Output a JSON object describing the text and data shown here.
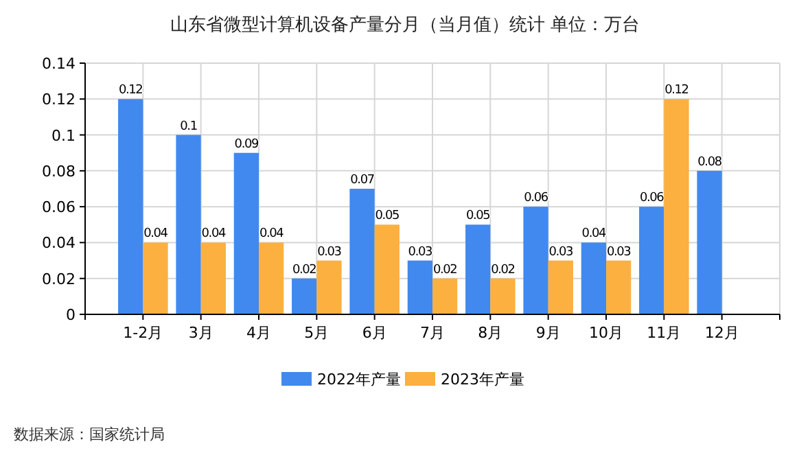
{
  "chart_data": {
    "type": "bar",
    "title": "山东省微型计算机设备产量分月（当月值）统计  单位：万台",
    "categories": [
      "1-2月",
      "3月",
      "4月",
      "5月",
      "6月",
      "7月",
      "8月",
      "9月",
      "10月",
      "11月",
      "12月"
    ],
    "series": [
      {
        "name": "2022年产量",
        "color": "#4189ee",
        "values": [
          0.12,
          0.1,
          0.09,
          0.02,
          0.07,
          0.03,
          0.05,
          0.06,
          0.04,
          0.06,
          0.08
        ]
      },
      {
        "name": "2023年产量",
        "color": "#fbb040",
        "values": [
          0.04,
          0.04,
          0.04,
          0.03,
          0.05,
          0.02,
          0.02,
          0.03,
          0.03,
          0.12,
          null
        ]
      }
    ],
    "ylim": [
      0,
      0.14
    ],
    "yticks": [
      0,
      0.02,
      0.04,
      0.06,
      0.08,
      0.1,
      0.12,
      0.14
    ],
    "grid": true,
    "legend": "bottom",
    "data_labels": true,
    "annotations": [
      "数据来源：国家统计局"
    ]
  }
}
